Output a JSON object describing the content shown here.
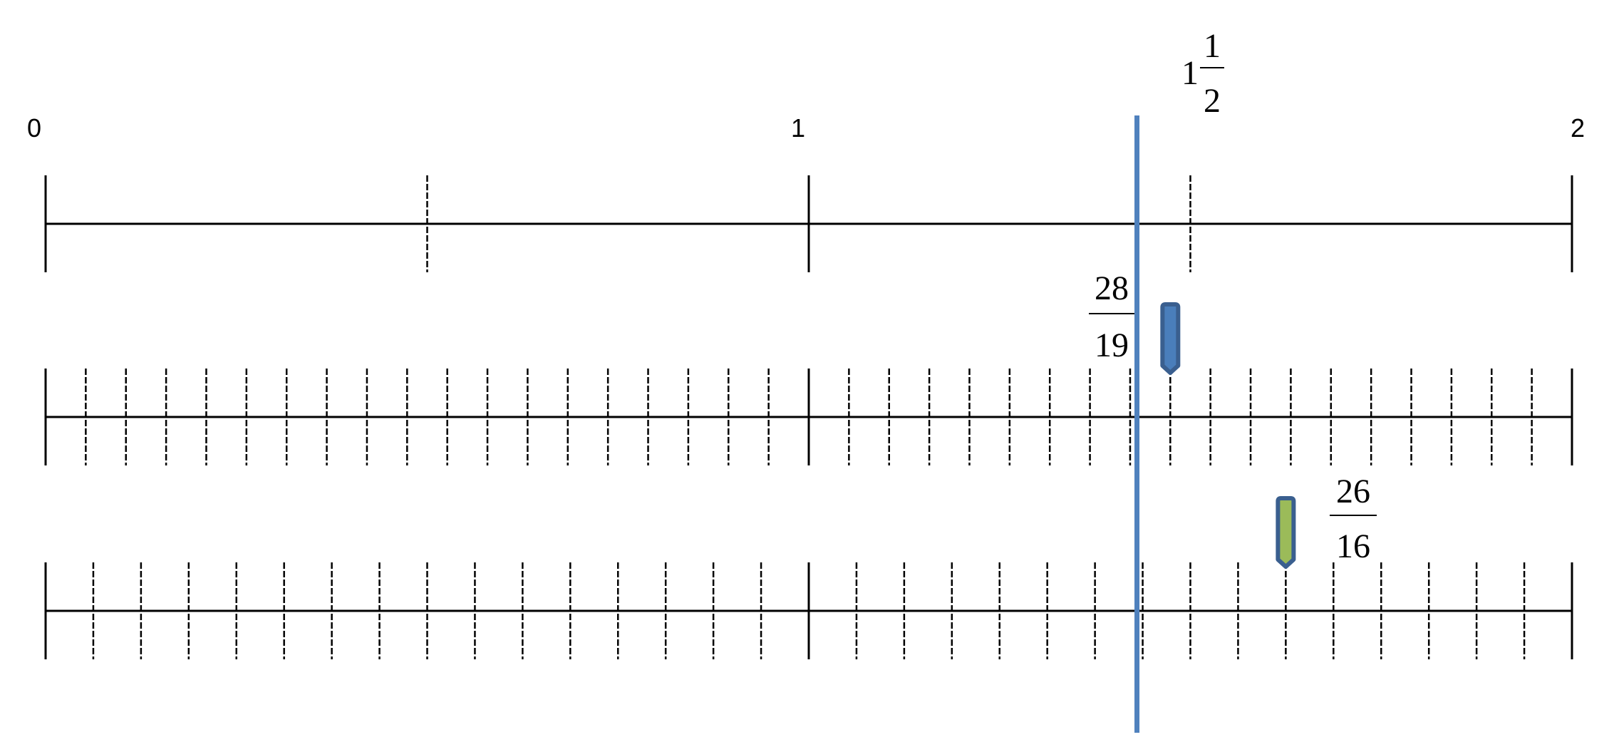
{
  "number_lines": {
    "min": 0,
    "max": 2,
    "major_labels": [
      "0",
      "1",
      "2"
    ],
    "lines": [
      {
        "name": "halves-line",
        "denominator": 2
      },
      {
        "name": "nineteenths-line",
        "denominator": 19
      },
      {
        "name": "sixteenths-line",
        "denominator": 16
      }
    ]
  },
  "labels": {
    "mixed": {
      "whole": "1",
      "numerator": "1",
      "denominator": "2",
      "value": 1.5
    },
    "fraction_a": {
      "numerator": "28",
      "denominator": "19",
      "value": 1.4737
    },
    "fraction_b": {
      "numerator": "26",
      "denominator": "16",
      "value": 1.625
    }
  },
  "vertical_marker_value": 1.43,
  "markers": [
    {
      "name": "marker-28-19",
      "value": 1.4737,
      "line": 1,
      "fill": "#4a7ebb",
      "stroke": "#3a5f8f"
    },
    {
      "name": "marker-26-16",
      "value": 1.625,
      "line": 2,
      "fill": "#9bbb59",
      "stroke": "#3a5f8f"
    }
  ],
  "colors": {
    "line": "#000000",
    "vertical_marker": "#4f81bd"
  }
}
